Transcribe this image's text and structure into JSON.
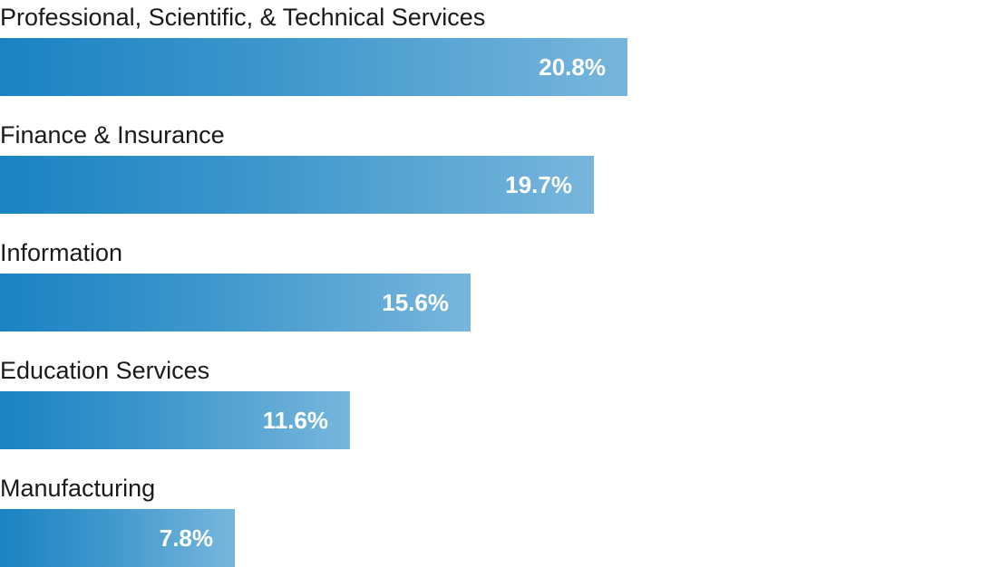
{
  "chart_data": {
    "type": "bar",
    "orientation": "horizontal",
    "categories": [
      "Professional, Scientific, & Technical Services",
      "Finance & Insurance",
      "Information",
      "Education Services",
      "Manufacturing"
    ],
    "values": [
      20.8,
      19.7,
      15.6,
      11.6,
      7.8
    ],
    "value_labels": [
      "20.8%",
      "19.7%",
      "15.6%",
      "11.6%",
      "7.8%"
    ],
    "unit": "%",
    "xlim": [
      0,
      33.2
    ],
    "grid": false,
    "legend": "none",
    "colors": {
      "bar_start": "#1a83c2",
      "bar_end": "#77b6dc",
      "label_text": "#1a1a1a",
      "value_text": "#ffffff"
    }
  }
}
